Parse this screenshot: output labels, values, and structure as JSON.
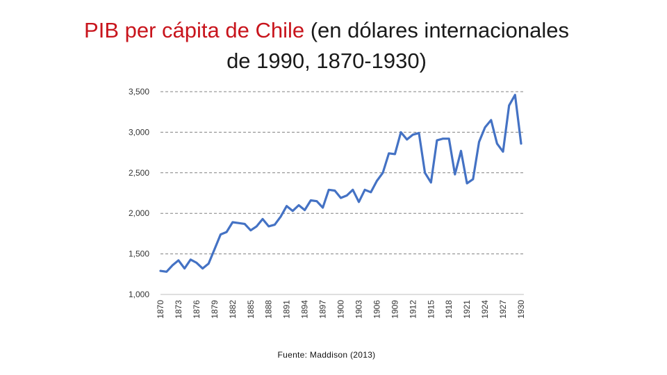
{
  "title": {
    "part1": "PIB per cápita de Chile",
    "part2": " (en dólares internacionales",
    "line2": "de 1990, 1870-1930)",
    "accent_color": "#c8141c"
  },
  "source": "Fuente: Maddison (2013)",
  "chart_data": {
    "type": "line",
    "title": "PIB per cápita de Chile (en dólares internacionales de 1990, 1870-1930)",
    "xlabel": "",
    "ylabel": "",
    "ylim": [
      1000,
      3500
    ],
    "yticks": [
      1000,
      1500,
      2000,
      2500,
      3000,
      3500
    ],
    "ytick_labels": [
      "1,000",
      "1,500",
      "2,000",
      "2,500",
      "3,000",
      "3,500"
    ],
    "xticks": [
      1870,
      1873,
      1876,
      1879,
      1882,
      1885,
      1888,
      1891,
      1894,
      1897,
      1900,
      1903,
      1906,
      1909,
      1912,
      1915,
      1918,
      1921,
      1924,
      1927,
      1930
    ],
    "grid": "horizontal dashed",
    "line_color": "#4472c4",
    "series": [
      {
        "x": [
          1870,
          1871,
          1872,
          1873,
          1874,
          1875,
          1876,
          1877,
          1878,
          1879,
          1880,
          1881,
          1882,
          1883,
          1884,
          1885,
          1886,
          1887,
          1888,
          1889,
          1890,
          1891,
          1892,
          1893,
          1894,
          1895,
          1896,
          1897,
          1898,
          1899,
          1900,
          1901,
          1902,
          1903,
          1904,
          1905,
          1906,
          1907,
          1908,
          1909,
          1910,
          1911,
          1912,
          1913,
          1914,
          1915,
          1916,
          1917,
          1918,
          1919,
          1920,
          1921,
          1922,
          1923,
          1924,
          1925,
          1926,
          1927,
          1928,
          1929,
          1930
        ],
        "values": [
          1290,
          1280,
          1360,
          1420,
          1320,
          1430,
          1390,
          1320,
          1380,
          1560,
          1740,
          1770,
          1890,
          1880,
          1870,
          1790,
          1840,
          1930,
          1840,
          1860,
          1960,
          2090,
          2030,
          2100,
          2040,
          2160,
          2150,
          2070,
          2290,
          2280,
          2190,
          2220,
          2290,
          2140,
          2290,
          2260,
          2400,
          2500,
          2740,
          2730,
          3000,
          2910,
          2970,
          2990,
          2500,
          2380,
          2900,
          2920,
          2920,
          2480,
          2770,
          2370,
          2420,
          2880,
          3060,
          3150,
          2860,
          2760,
          3330,
          3460,
          2860
        ]
      }
    ]
  }
}
